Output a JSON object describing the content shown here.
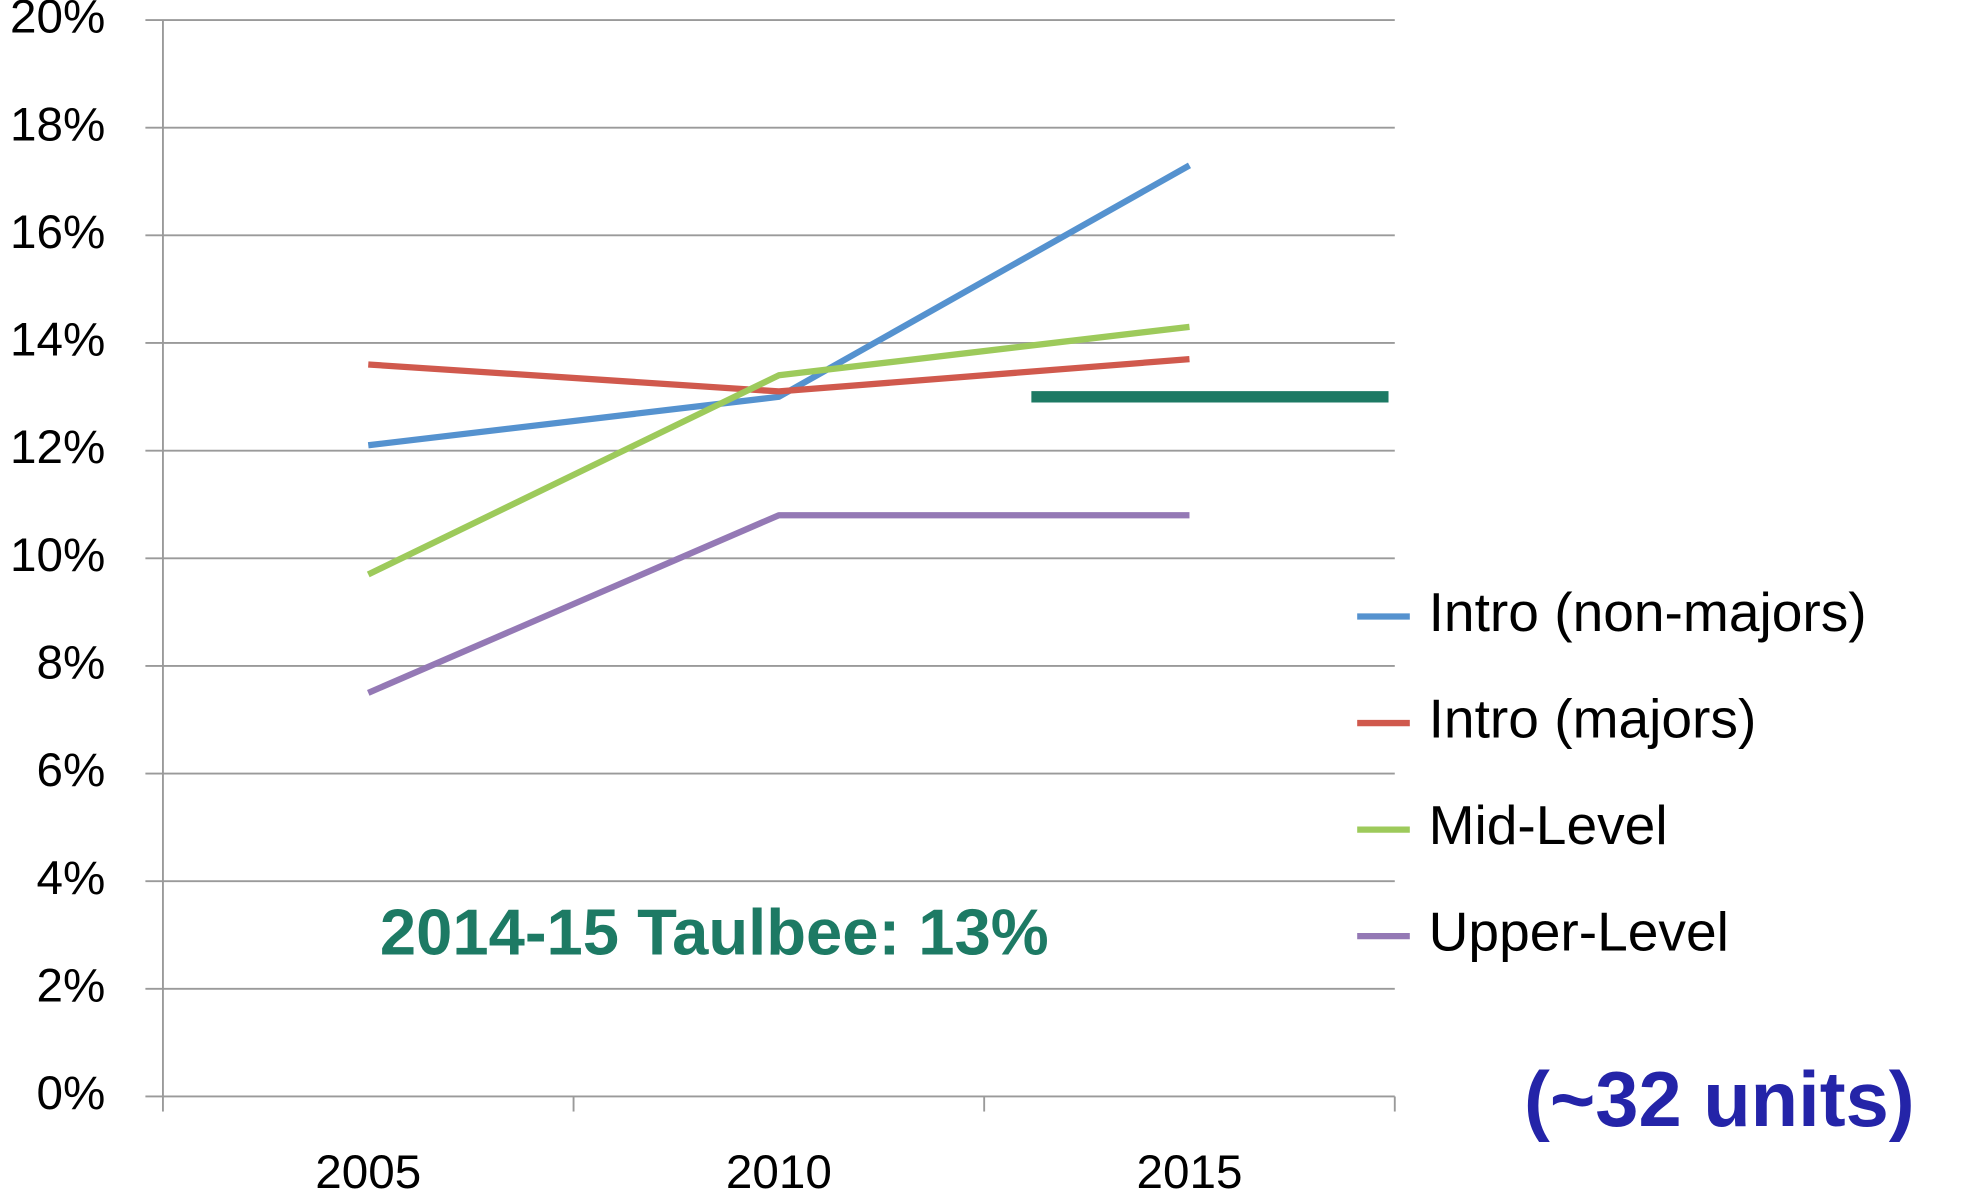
{
  "chart_data": {
    "type": "line",
    "categories": [
      "2005",
      "2010",
      "2015"
    ],
    "series": [
      {
        "name": "Intro (non-majors)",
        "color": "#5592cf",
        "values": [
          12.1,
          13.0,
          17.3
        ]
      },
      {
        "name": "Intro (majors)",
        "color": "#d0594d",
        "values": [
          13.6,
          13.1,
          13.7
        ]
      },
      {
        "name": "Mid-Level",
        "color": "#9dca5b",
        "values": [
          9.7,
          13.4,
          14.3
        ]
      },
      {
        "name": "Upper-Level",
        "color": "#9479b5",
        "values": [
          7.5,
          10.8,
          10.8
        ]
      }
    ],
    "ylim": [
      0,
      20
    ],
    "yticks": [
      {
        "value": 0,
        "label": "0%"
      },
      {
        "value": 2,
        "label": "2%"
      },
      {
        "value": 4,
        "label": "4%"
      },
      {
        "value": 6,
        "label": "6%"
      },
      {
        "value": 8,
        "label": "8%"
      },
      {
        "value": 10,
        "label": "10%"
      },
      {
        "value": 12,
        "label": "12%"
      },
      {
        "value": 14,
        "label": "14%"
      },
      {
        "value": 16,
        "label": "16%"
      },
      {
        "value": 18,
        "label": "18%"
      },
      {
        "value": 20,
        "label": "20%"
      }
    ],
    "grid": true,
    "reference_line": {
      "value": 13,
      "color": "#1d7a64"
    },
    "annotations": [
      "2014-15 Taulbee: 13%",
      "(~32 units)"
    ]
  }
}
